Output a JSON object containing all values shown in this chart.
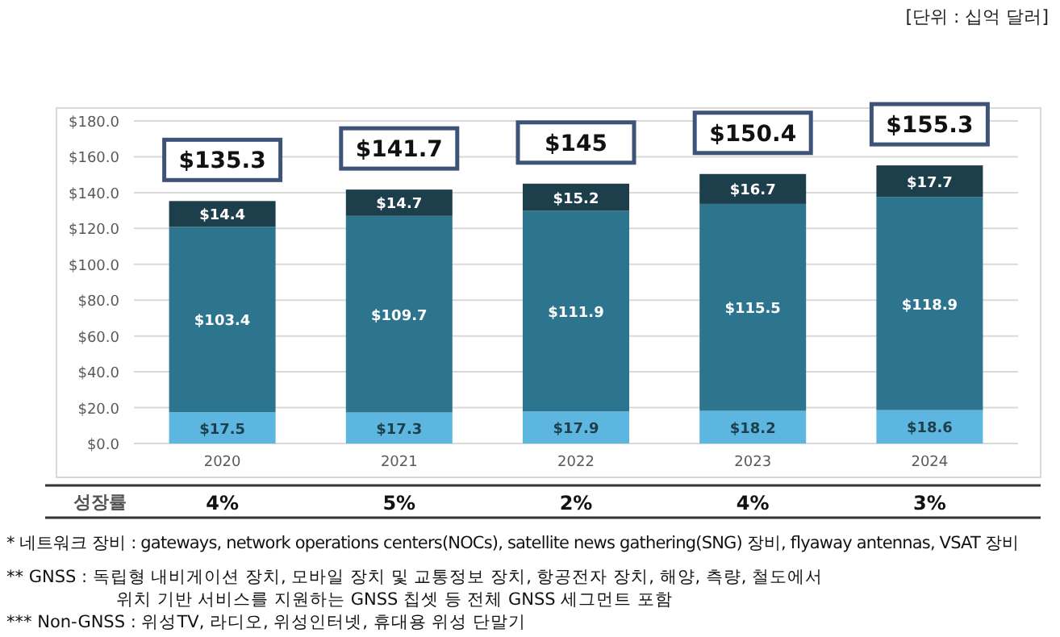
{
  "chart_data": {
    "type": "bar",
    "stacked": true,
    "subtitle": "[단위 : 십억 달러]",
    "categories": [
      "2020",
      "2021",
      "2022",
      "2023",
      "2024"
    ],
    "series": [
      {
        "color": "#5db6df",
        "values": [
          17.5,
          17.3,
          17.9,
          18.2,
          18.6
        ],
        "value_labels": [
          "$17.5",
          "$17.3",
          "$17.9",
          "$18.2",
          "$18.6"
        ]
      },
      {
        "color": "#2d758f",
        "values": [
          103.4,
          109.7,
          111.9,
          115.5,
          118.9
        ],
        "value_labels": [
          "$103.4",
          "$109.7",
          "$111.9",
          "$115.5",
          "$118.9"
        ]
      },
      {
        "color": "#1d3f4c",
        "values": [
          14.4,
          14.7,
          15.2,
          16.7,
          17.7
        ],
        "value_labels": [
          "$14.4",
          "$14.7",
          "$15.2",
          "$16.7",
          "$17.7"
        ]
      }
    ],
    "totals": [
      "$135.3",
      "$141.7",
      "$145",
      "$150.4",
      "$155.3"
    ],
    "ylim": [
      0,
      180
    ],
    "yticks": [
      {
        "value": 0,
        "label": "$0.0"
      },
      {
        "value": 20,
        "label": "$20.0"
      },
      {
        "value": 40,
        "label": "$40.0"
      },
      {
        "value": 60,
        "label": "$60.0"
      },
      {
        "value": 80,
        "label": "$80.0"
      },
      {
        "value": 100,
        "label": "$100.0"
      },
      {
        "value": 120,
        "label": "$120.0"
      },
      {
        "value": 140,
        "label": "$140.0"
      },
      {
        "value": 160,
        "label": "$160.0"
      },
      {
        "value": 180,
        "label": "$180.0"
      }
    ],
    "grid": "y",
    "annotations": [
      "성장률",
      "4%",
      "5%",
      "2%",
      "4%",
      "3%",
      "* 네트워크 장비 : gateways, network operations centers(NOCs), satellite news gathering(SNG) 장비, flyaway antennas, VSAT 장비",
      "** GNSS : 독립형 내비게이션 장치, 모바일 장치 및 교통정보 장치, 항공전자 장치, 해양, 측량, 철도에서",
      "위치 기반 서비스를 지원하는 GNSS 칩셋 등 전체 GNSS 세그먼트 포함",
      "*** Non-GNSS : 위성TV, 라디오, 위성인터넷, 휴대용 위성 단말기"
    ]
  }
}
